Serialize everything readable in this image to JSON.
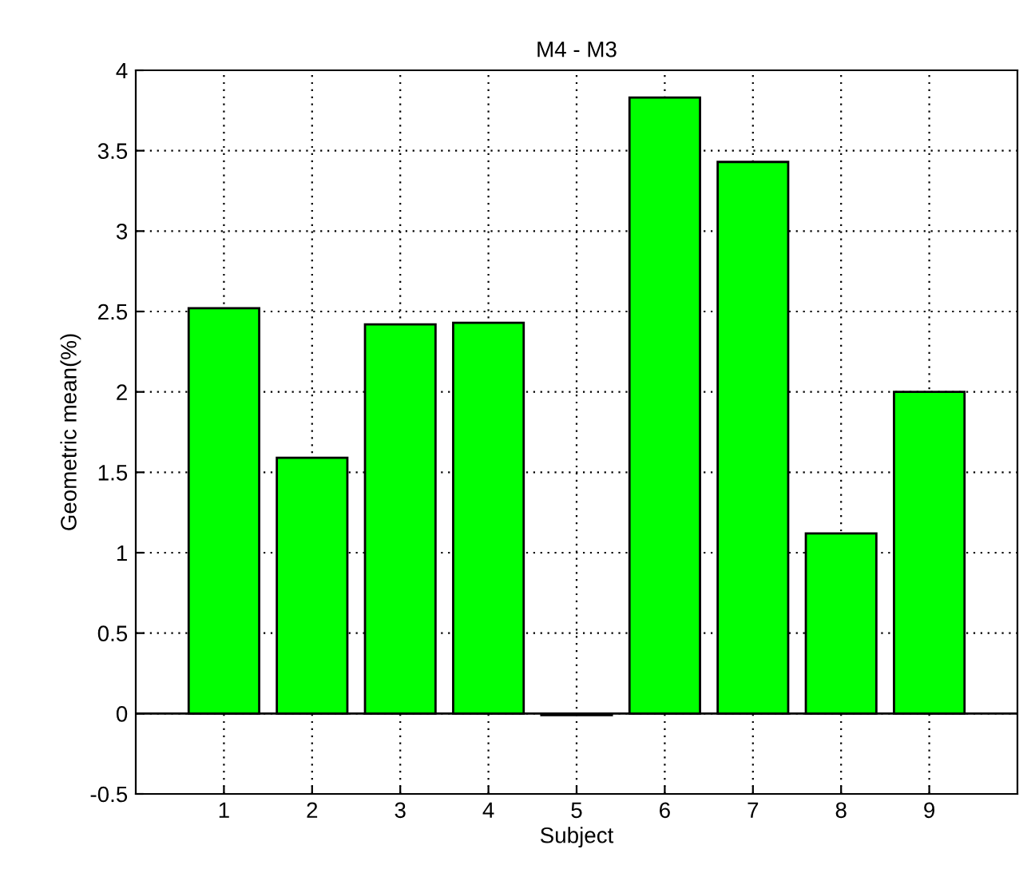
{
  "chart_data": {
    "type": "bar",
    "title": "M4 - M3",
    "xlabel": "Subject",
    "ylabel": "Geometric mean(%)",
    "categories": [
      "1",
      "2",
      "3",
      "4",
      "5",
      "6",
      "7",
      "8",
      "9"
    ],
    "values": [
      2.52,
      1.59,
      2.42,
      2.43,
      -0.01,
      3.83,
      3.43,
      1.12,
      2.0
    ],
    "color": "#00ff00",
    "ylim": [
      -0.5,
      4
    ],
    "yticks": [
      {
        "value": -0.5,
        "label": "-0.5"
      },
      0,
      0.5,
      1,
      1.5,
      2,
      2.5,
      3,
      3.5,
      4
    ],
    "grid": true
  }
}
